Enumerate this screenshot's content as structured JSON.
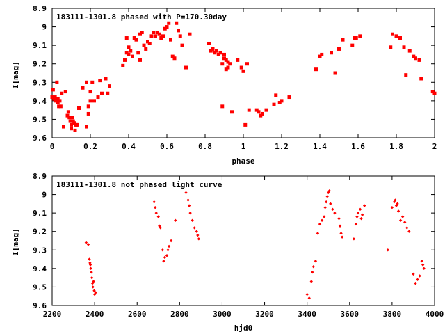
{
  "chart_data": [
    {
      "type": "scatter",
      "title": "183111-1301.8 phased with P=170.30day",
      "xlabel": "phase",
      "ylabel": "I[mag]",
      "xlim": [
        0,
        2
      ],
      "ylim": [
        8.9,
        9.6
      ],
      "y_inverted": true,
      "xticks": [
        "0",
        "0.2",
        "0.4",
        "0.6",
        "0.8",
        "1",
        "1.2",
        "1.4",
        "1.6",
        "1.8",
        "2"
      ],
      "yticks": [
        "8.9",
        "9",
        "9.1",
        "9.2",
        "9.3",
        "9.4",
        "9.5",
        "9.6"
      ],
      "marker": "filled-square",
      "color": "#ff0000",
      "series": [
        {
          "x": [
            0.0,
            0.005,
            0.01,
            0.015,
            0.02,
            0.025,
            0.03,
            0.03,
            0.035,
            0.04,
            0.045,
            0.05,
            0.06,
            0.07,
            0.08,
            0.085,
            0.09,
            0.095,
            0.1,
            0.1,
            0.105,
            0.11,
            0.115,
            0.12,
            0.125,
            0.13,
            0.14,
            0.16,
            0.18,
            0.18,
            0.19,
            0.19,
            0.2,
            0.2,
            0.21,
            0.22,
            0.24,
            0.25,
            0.26,
            0.28,
            0.29,
            0.3,
            0.37,
            0.38,
            0.39,
            0.39,
            0.4,
            0.4,
            0.41,
            0.42,
            0.43,
            0.44,
            0.45,
            0.46,
            0.46,
            0.47,
            0.48,
            0.49,
            0.5,
            0.51,
            0.52,
            0.53,
            0.54,
            0.55,
            0.56,
            0.57,
            0.58,
            0.59,
            0.6,
            0.61,
            0.62,
            0.63,
            0.64,
            0.65,
            0.66,
            0.67,
            0.68,
            0.7,
            0.72,
            0.82,
            0.83,
            0.84,
            0.85,
            0.86,
            0.87,
            0.88,
            0.89,
            0.89,
            0.9,
            0.9,
            0.91,
            0.91,
            0.92,
            0.92,
            0.93,
            0.94,
            0.97,
            0.99,
            1.0,
            1.01,
            1.02,
            1.03,
            1.07,
            1.08,
            1.09,
            1.1,
            1.12,
            1.16,
            1.17,
            1.19,
            1.2,
            1.24,
            1.38,
            1.4,
            1.41,
            1.46,
            1.48,
            1.5,
            1.52,
            1.57,
            1.58,
            1.59,
            1.61,
            1.77,
            1.78,
            1.8,
            1.82,
            1.84,
            1.85,
            1.87,
            1.89,
            1.9,
            1.92,
            1.93,
            1.99,
            2.0
          ],
          "y": [
            9.38,
            9.34,
            9.39,
            9.38,
            9.4,
            9.3,
            9.39,
            9.41,
            9.43,
            9.4,
            9.43,
            9.36,
            9.54,
            9.35,
            9.48,
            9.46,
            9.49,
            9.51,
            9.53,
            9.55,
            9.49,
            9.51,
            9.52,
            9.56,
            9.53,
            9.53,
            9.44,
            9.33,
            9.3,
            9.54,
            9.47,
            9.43,
            9.4,
            9.35,
            9.3,
            9.4,
            9.38,
            9.29,
            9.36,
            9.28,
            9.36,
            9.32,
            9.21,
            9.18,
            9.14,
            9.06,
            9.11,
            9.15,
            9.13,
            9.16,
            9.06,
            9.07,
            9.14,
            9.04,
            9.18,
            9.03,
            9.1,
            9.12,
            9.08,
            9.09,
            9.05,
            9.03,
            9.05,
            9.03,
            9.04,
            9.06,
            9.05,
            9.01,
            9.0,
            8.98,
            9.07,
            9.16,
            9.17,
            8.98,
            9.02,
            9.05,
            9.1,
            9.22,
            9.04,
            9.09,
            9.13,
            9.12,
            9.14,
            9.13,
            9.15,
            9.14,
            9.2,
            9.43,
            9.17,
            9.15,
            9.23,
            9.18,
            9.19,
            9.22,
            9.2,
            9.46,
            9.18,
            9.22,
            9.24,
            9.53,
            9.2,
            9.45,
            9.45,
            9.46,
            9.48,
            9.47,
            9.45,
            9.42,
            9.37,
            9.41,
            9.4,
            9.38,
            9.23,
            9.16,
            9.15,
            9.14,
            9.25,
            9.12,
            9.07,
            9.1,
            9.06,
            9.06,
            9.05,
            9.11,
            9.04,
            9.05,
            9.06,
            9.11,
            9.26,
            9.13,
            9.16,
            9.17,
            9.18,
            9.28,
            9.35,
            9.36
          ]
        }
      ]
    },
    {
      "type": "scatter",
      "title": "183111-1301.8 not phased light curve",
      "xlabel": "hjd0",
      "ylabel": "I[mag]",
      "xlim": [
        2200,
        4000
      ],
      "ylim": [
        8.9,
        9.6
      ],
      "y_inverted": true,
      "xticks": [
        "2200",
        "2400",
        "2600",
        "2800",
        "3000",
        "3200",
        "3400",
        "3600",
        "3800",
        "4000"
      ],
      "yticks": [
        "8.9",
        "9",
        "9.1",
        "9.2",
        "9.3",
        "9.4",
        "9.5",
        "9.6"
      ],
      "marker": "small-diamond",
      "color": "#ff0000",
      "series": [
        {
          "x": [
            2360,
            2370,
            2375,
            2378,
            2380,
            2382,
            2385,
            2387,
            2390,
            2392,
            2395,
            2398,
            2400,
            2405,
            2680,
            2685,
            2690,
            2700,
            2705,
            2710,
            2720,
            2725,
            2730,
            2740,
            2745,
            2750,
            2760,
            2780,
            2830,
            2840,
            2845,
            2850,
            2860,
            2870,
            2880,
            2885,
            2890,
            3400,
            3410,
            3420,
            3425,
            3430,
            3440,
            3450,
            3460,
            3470,
            3480,
            3485,
            3490,
            3495,
            3500,
            3505,
            3510,
            3520,
            3530,
            3550,
            3555,
            3560,
            3565,
            3620,
            3630,
            3635,
            3640,
            3650,
            3655,
            3660,
            3670,
            3780,
            3800,
            3810,
            3815,
            3820,
            3825,
            3830,
            3840,
            3850,
            3860,
            3870,
            3880,
            3900,
            3910,
            3920,
            3930,
            3940,
            3945,
            3950
          ],
          "y": [
            9.26,
            9.27,
            9.35,
            9.37,
            9.38,
            9.4,
            9.42,
            9.45,
            9.48,
            9.5,
            9.47,
            9.52,
            9.54,
            9.53,
            9.04,
            9.07,
            9.1,
            9.12,
            9.17,
            9.18,
            9.3,
            9.36,
            9.34,
            9.33,
            9.3,
            9.28,
            9.25,
            9.14,
            8.99,
            9.03,
            9.06,
            9.1,
            9.14,
            9.18,
            9.2,
            9.22,
            9.24,
            9.54,
            9.56,
            9.47,
            9.42,
            9.39,
            9.36,
            9.21,
            9.16,
            9.14,
            9.12,
            9.07,
            9.04,
            9.01,
            8.99,
            8.98,
            9.05,
            9.08,
            9.1,
            9.13,
            9.17,
            9.21,
            9.23,
            9.24,
            9.16,
            9.12,
            9.1,
            9.08,
            9.13,
            9.11,
            9.06,
            9.3,
            9.07,
            9.04,
            9.03,
            9.06,
            9.05,
            9.09,
            9.14,
            9.12,
            9.15,
            9.18,
            9.2,
            9.43,
            9.48,
            9.46,
            9.44,
            9.36,
            9.38,
            9.4
          ]
        }
      ]
    }
  ]
}
